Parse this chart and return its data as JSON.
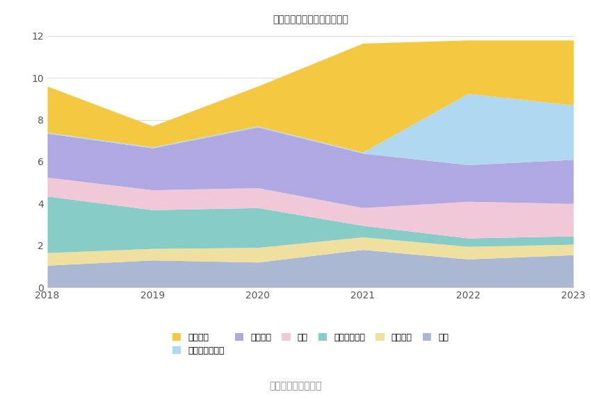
{
  "years": [
    2018,
    2019,
    2020,
    2021,
    2022,
    2023
  ],
  "series": {
    "其它": [
      1.05,
      1.3,
      1.2,
      1.8,
      1.35,
      1.55
    ],
    "固定资产": [
      0.6,
      0.55,
      0.7,
      0.6,
      0.6,
      0.5
    ],
    "其他流动资产": [
      2.7,
      1.85,
      1.9,
      0.55,
      0.4,
      0.4
    ],
    "存货": [
      0.9,
      0.95,
      0.95,
      0.85,
      1.75,
      1.55
    ],
    "应收账款": [
      2.1,
      2.0,
      2.9,
      2.6,
      1.75,
      2.1
    ],
    "交易性金融资产": [
      0.05,
      0.05,
      0.05,
      0.05,
      3.4,
      2.6
    ],
    "货币资金": [
      2.2,
      1.0,
      1.9,
      5.2,
      2.55,
      3.1
    ]
  },
  "colors": {
    "其它": "#aab8d4",
    "固定资产": "#f0e0a0",
    "其他流动资产": "#88ccc8",
    "存货": "#f0c8d8",
    "应收账款": "#b0a8e0",
    "交易性金融资产": "#b0d8f0",
    "货币资金": "#f5c842"
  },
  "title": "历年主要资产堆积图（亿元）",
  "ylim": [
    0,
    12
  ],
  "yticks": [
    0,
    2,
    4,
    6,
    8,
    10,
    12
  ],
  "source_text": "数据来源：恒生聚源",
  "bg_color": "#ffffff",
  "grid_color": "#dddddd",
  "title_fontsize": 14,
  "tick_fontsize": 10,
  "legend_fontsize": 9,
  "source_fontsize": 10,
  "legend_order": [
    "货币资金",
    "交易性金融资产",
    "应收账款",
    "存货",
    "其他流动资产",
    "固定资产",
    "其它"
  ]
}
